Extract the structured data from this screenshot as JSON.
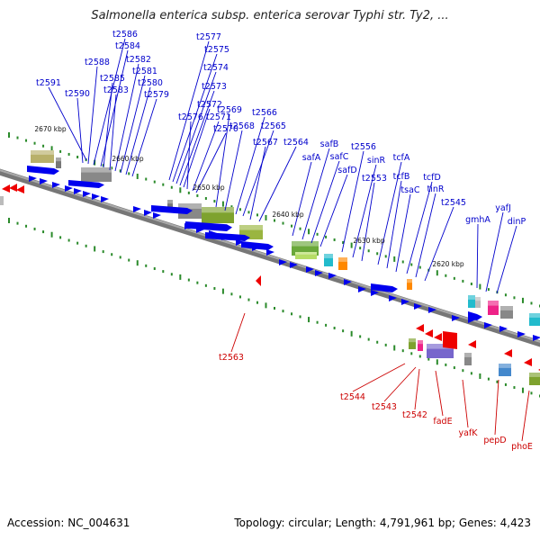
{
  "title": "Salmonella enterica subsp. enterica serovar Typhi str. Ty2, ...",
  "footer": {
    "accession": "Accession: NC_004631",
    "summary": "Topology: circular; Length: 4,791,961 bp; Genes: 4,423"
  },
  "colors": {
    "forward_label": "#0000cc",
    "reverse_label": "#cc0000",
    "forward_gene": "#0000ee",
    "reverse_gene": "#ee0000",
    "backbone": "#777777",
    "tick": "#2a8a2a"
  },
  "kbp_marks": [
    "2670 kbp",
    "2660 kbp",
    "2650 kbp",
    "2640 kbp",
    "2630 kbp",
    "2620 kbp"
  ],
  "forward_labels": [
    "t2591",
    "t2590",
    "t2588",
    "t2586",
    "t2584",
    "t2585",
    "t2583",
    "t2582",
    "t2581",
    "t2580",
    "t2579",
    "t2577",
    "t2575",
    "t2574",
    "t2573",
    "t2572",
    "t2576",
    "t2571",
    "t2570",
    "t2569",
    "t2568",
    "t2566",
    "t2565",
    "t2567",
    "t2564",
    "safA",
    "safB",
    "safC",
    "safD",
    "t2556",
    "sinR",
    "t2553",
    "tcfA",
    "tcfB",
    "tsaC",
    "tcfD",
    "tinR",
    "t2545",
    "gmhA",
    "yafJ",
    "dinP"
  ],
  "reverse_labels": [
    "t2563",
    "t2544",
    "t2543",
    "t2542",
    "fadE",
    "yafK",
    "pepD",
    "phoE"
  ]
}
